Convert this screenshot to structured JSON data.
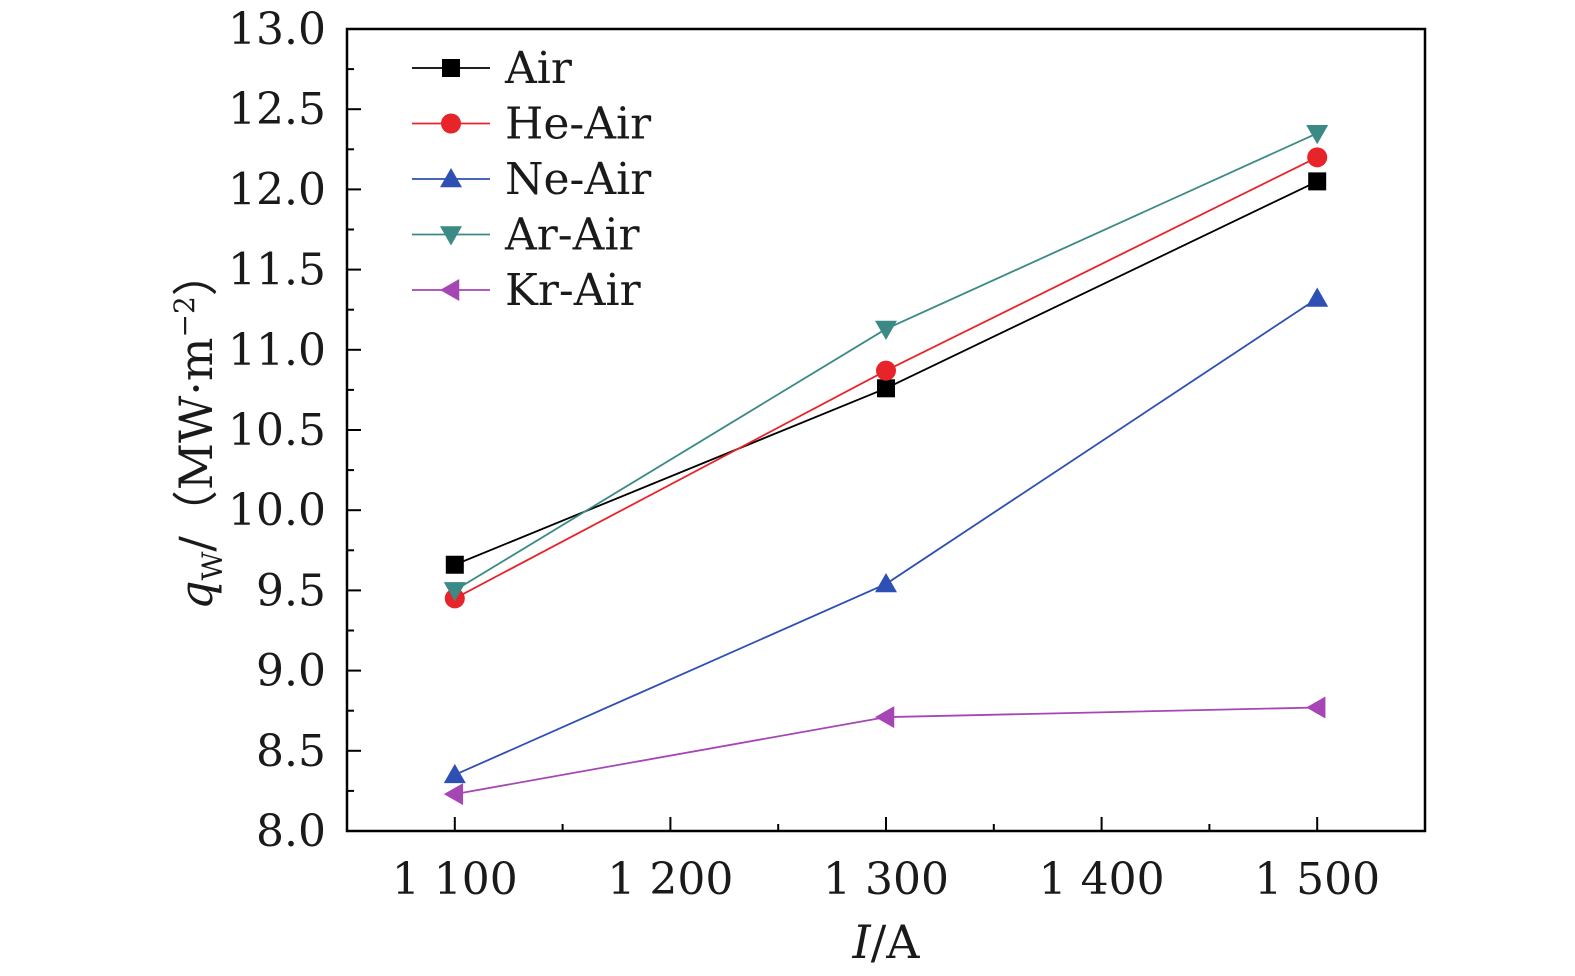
{
  "chart_data": {
    "type": "line",
    "x": [
      1100,
      1300,
      1500
    ],
    "x_tick_values": [
      1100,
      1200,
      1300,
      1400,
      1500
    ],
    "x_tick_labels": [
      "1 100",
      "1 200",
      "1 300",
      "1 400",
      "1 500"
    ],
    "xlim": [
      1050,
      1550
    ],
    "y_tick_values": [
      8.0,
      8.5,
      9.0,
      9.5,
      10.0,
      10.5,
      11.0,
      11.5,
      12.0,
      12.5,
      13.0
    ],
    "y_tick_labels": [
      "8.0",
      "8.5",
      "9.0",
      "9.5",
      "10.0",
      "10.5",
      "11.0",
      "11.5",
      "12.0",
      "12.5",
      "13.0"
    ],
    "ylim": [
      8.0,
      13.0
    ],
    "xlabel": {
      "var": "I",
      "unit": "/A"
    },
    "ylabel": {
      "var": "q",
      "sub": "W",
      "unit": "/（MW·m",
      "sup": "−2",
      "close": "）"
    },
    "grid": false,
    "legend_position": "top-left",
    "series": [
      {
        "name": "Air",
        "color": "#000000",
        "marker": "square",
        "values": [
          9.66,
          10.76,
          12.05
        ]
      },
      {
        "name": "He-Air",
        "color": "#e8242b",
        "marker": "circle",
        "values": [
          9.45,
          10.87,
          12.2
        ]
      },
      {
        "name": "Ne-Air",
        "color": "#2e4fb3",
        "marker": "triangle-up",
        "values": [
          8.35,
          9.54,
          11.32
        ]
      },
      {
        "name": "Ar-Air",
        "color": "#3b8a86",
        "marker": "triangle-down",
        "values": [
          9.5,
          11.13,
          12.35
        ]
      },
      {
        "name": "Kr-Air",
        "color": "#a646b5",
        "marker": "triangle-left",
        "values": [
          8.23,
          8.71,
          8.77
        ]
      }
    ]
  }
}
